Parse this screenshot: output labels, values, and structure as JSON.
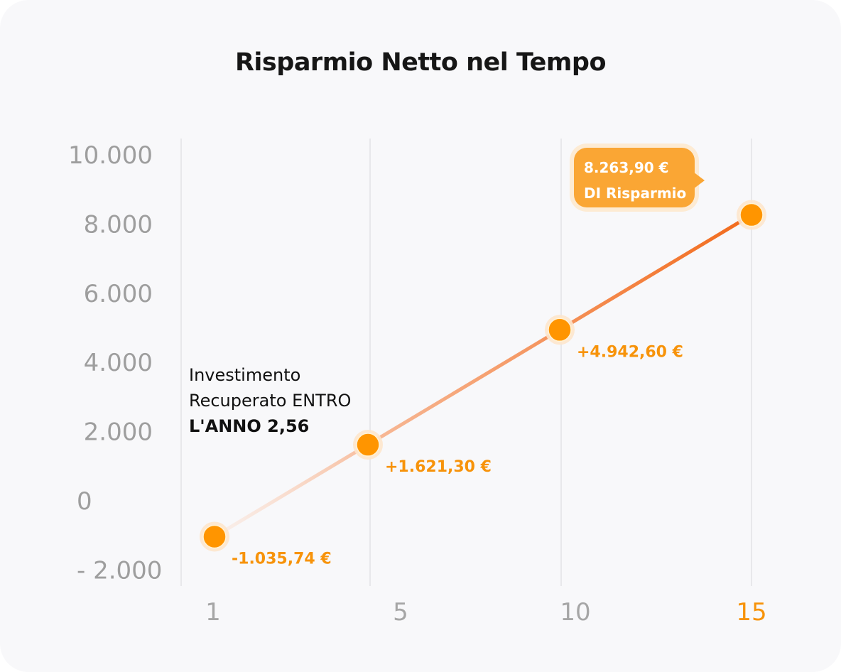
{
  "chart_data": {
    "type": "line",
    "title": "Risparmio Netto nel Tempo",
    "xlabel": "",
    "ylabel": "",
    "x": [
      1,
      5,
      10,
      15
    ],
    "x_ticks": [
      "1",
      "5",
      "10",
      "15"
    ],
    "highlighted_x_tick": "15",
    "y_ticks": [
      "10.000",
      "8.000",
      "6.000",
      "4.000",
      "2.000",
      "0",
      "- 2.000"
    ],
    "y_tick_values": [
      10000,
      8000,
      6000,
      4000,
      2000,
      0,
      -2000
    ],
    "ylim": [
      -2000,
      10000
    ],
    "grid": "vertical",
    "series": [
      {
        "values": [
          -1035.74,
          1621.3,
          4942.6,
          8263.9
        ]
      }
    ],
    "data_labels": [
      "-1.035,74 €",
      "+1.621,30 €",
      "+4.942,60 €"
    ],
    "callout": {
      "value": "8.263,90 €",
      "text": "DI Risparmio"
    },
    "annotation": {
      "line1": "Investimento",
      "line2": "Recuperato ENTRO",
      "line3": "L'ANNO 2,56"
    },
    "colors": {
      "point": "#ff9500",
      "line_end": "#f26a1b",
      "label": "#f7930a",
      "callout": "#faa634"
    }
  }
}
